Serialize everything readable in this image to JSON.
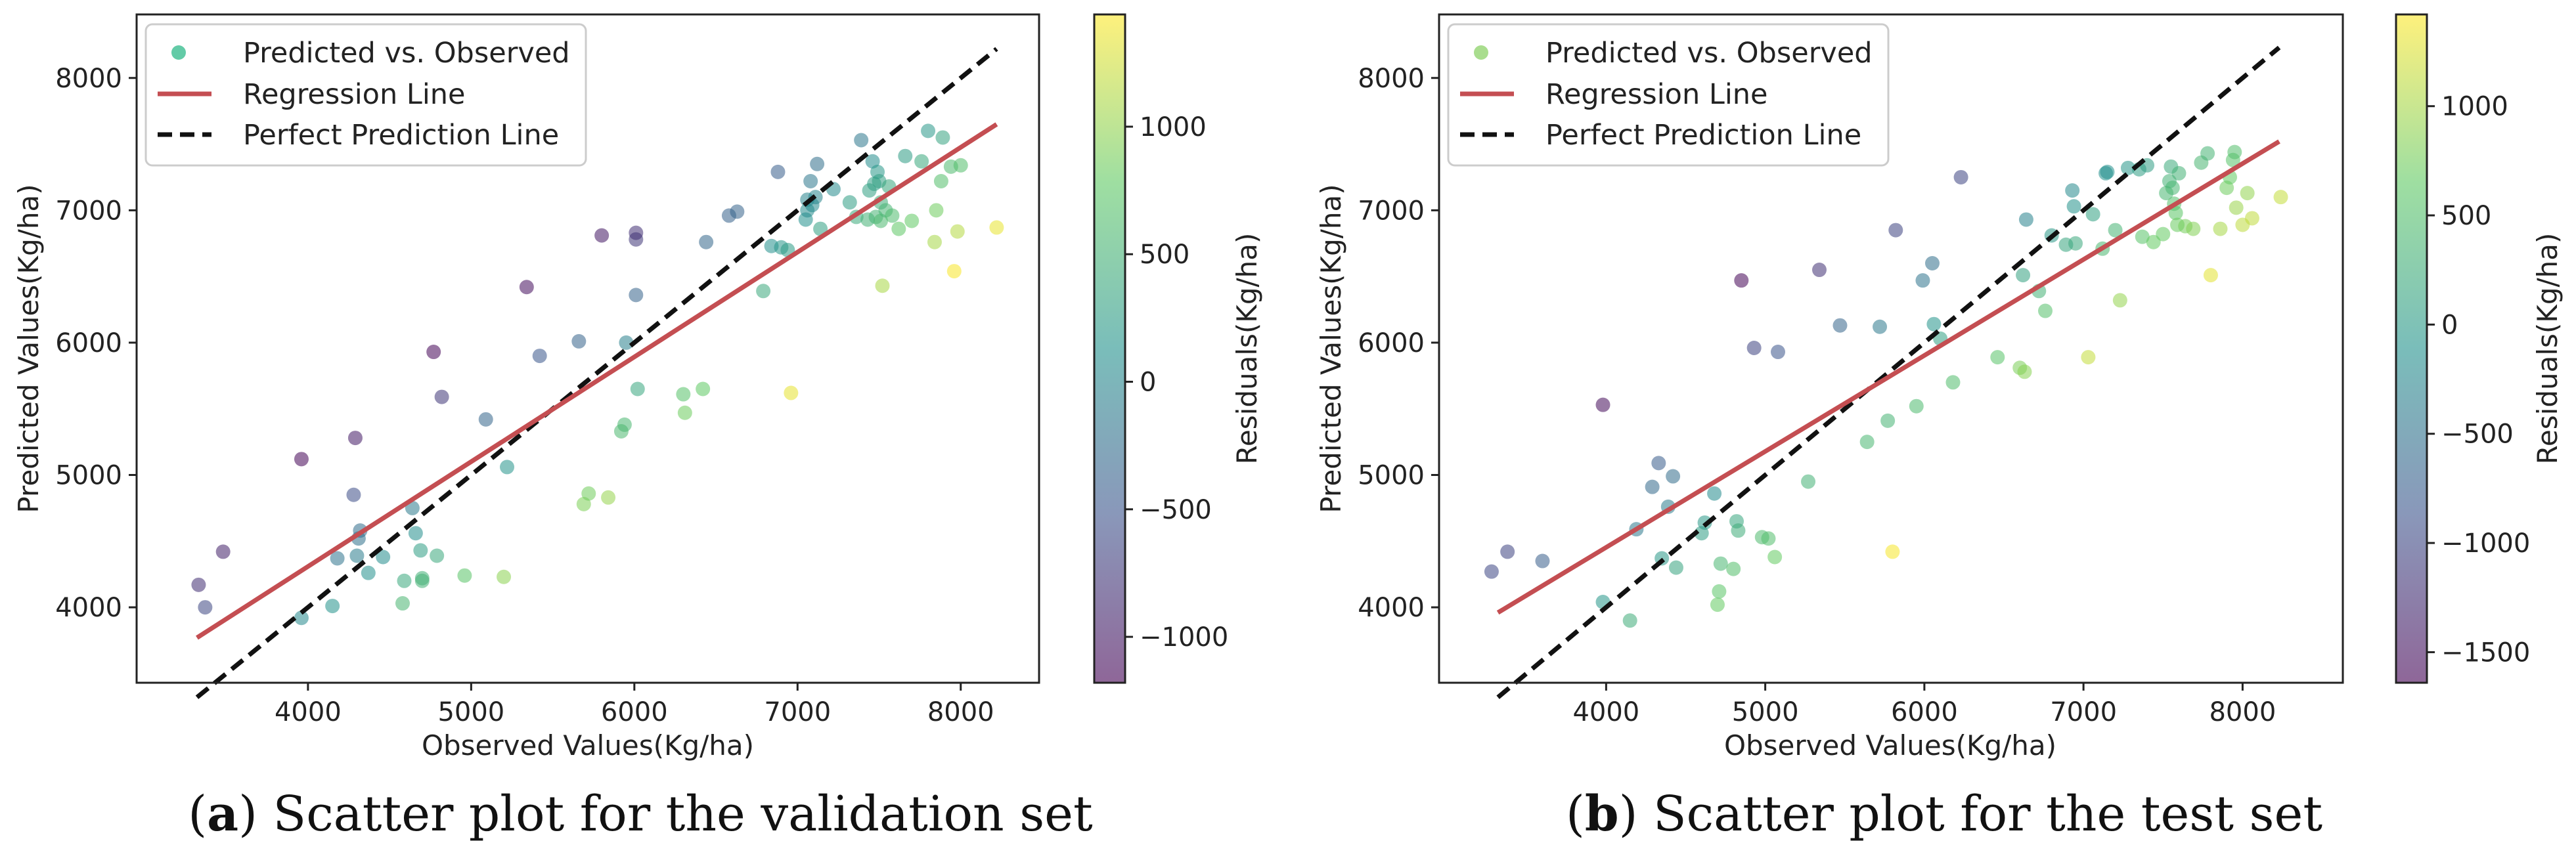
{
  "colors": {
    "regression": "#c44e52",
    "perfect": "#111111",
    "legend_marker_a": "#2fb989",
    "legend_marker_b": "#9ad77a",
    "colormap": [
      "#440154",
      "#3b528b",
      "#21918c",
      "#5ec962",
      "#fde725"
    ]
  },
  "chart_data": [
    {
      "type": "scatter",
      "caption": {
        "letter": "a",
        "open": "(",
        "close": ")",
        "text": " Scatter plot for the validation set"
      },
      "xlabel": "Observed Values(Kg/ha)",
      "ylabel": "Predicted Values(Kg/ha)",
      "colorbar_label": "Residuals(Kg/ha)",
      "xlim": [
        2950,
        8480
      ],
      "ylim": [
        3430,
        8480
      ],
      "xticks": [
        4000,
        5000,
        6000,
        7000,
        8000
      ],
      "yticks": [
        4000,
        5000,
        6000,
        7000,
        8000
      ],
      "cbar_range": [
        -1180,
        1440
      ],
      "cbar_ticks": [
        -1000,
        -500,
        0,
        500,
        1000
      ],
      "grid": false,
      "legend": {
        "position": "top-left",
        "entries": [
          "Predicted vs. Observed",
          "Regression Line",
          "Perfect Prediction Line"
        ]
      },
      "regression_line": {
        "x": [
          3320,
          8220
        ],
        "y": [
          3770,
          7650
        ]
      },
      "perfect_line": {
        "x": [
          3320,
          8220
        ],
        "y": [
          3320,
          8220
        ]
      },
      "series": [
        {
          "name": "Predicted vs. Observed",
          "points": [
            [
              3330,
              4170
            ],
            [
              3370,
              4000
            ],
            [
              3480,
              4420
            ],
            [
              3960,
              3920
            ],
            [
              3960,
              5120
            ],
            [
              4150,
              4010
            ],
            [
              4180,
              4370
            ],
            [
              4280,
              4850
            ],
            [
              4290,
              5280
            ],
            [
              4300,
              4390
            ],
            [
              4310,
              4520
            ],
            [
              4320,
              4580
            ],
            [
              4370,
              4260
            ],
            [
              4460,
              4380
            ],
            [
              4580,
              4030
            ],
            [
              4590,
              4200
            ],
            [
              4640,
              4750
            ],
            [
              4660,
              4560
            ],
            [
              4690,
              4430
            ],
            [
              4700,
              4220
            ],
            [
              4700,
              4200
            ],
            [
              4770,
              5930
            ],
            [
              4790,
              4390
            ],
            [
              4820,
              5590
            ],
            [
              4960,
              4240
            ],
            [
              5090,
              5420
            ],
            [
              5200,
              4230
            ],
            [
              5220,
              5060
            ],
            [
              5340,
              6420
            ],
            [
              5420,
              5900
            ],
            [
              5660,
              6010
            ],
            [
              5690,
              4780
            ],
            [
              5720,
              4860
            ],
            [
              5800,
              6810
            ],
            [
              5840,
              4830
            ],
            [
              5920,
              5330
            ],
            [
              5940,
              5380
            ],
            [
              5950,
              6000
            ],
            [
              6010,
              6780
            ],
            [
              6010,
              6360
            ],
            [
              6010,
              6830
            ],
            [
              6020,
              5650
            ],
            [
              6300,
              5610
            ],
            [
              6310,
              5470
            ],
            [
              6420,
              5650
            ],
            [
              6440,
              6760
            ],
            [
              6580,
              6960
            ],
            [
              6630,
              6990
            ],
            [
              6790,
              6390
            ],
            [
              6840,
              6730
            ],
            [
              6880,
              7290
            ],
            [
              6900,
              6720
            ],
            [
              6940,
              6700
            ],
            [
              6960,
              5620
            ],
            [
              7050,
              6930
            ],
            [
              7060,
              7080
            ],
            [
              7080,
              7220
            ],
            [
              7090,
              7040
            ],
            [
              7110,
              7100
            ],
            [
              7120,
              7350
            ],
            [
              7140,
              6860
            ],
            [
              7220,
              7160
            ],
            [
              7320,
              7060
            ],
            [
              7360,
              6950
            ],
            [
              7390,
              7530
            ],
            [
              7430,
              6930
            ],
            [
              7460,
              7370
            ],
            [
              7470,
              7200
            ],
            [
              7480,
              6950
            ],
            [
              7490,
              7290
            ],
            [
              7500,
              7220
            ],
            [
              7510,
              6920
            ],
            [
              7510,
              7060
            ],
            [
              7520,
              6430
            ],
            [
              7540,
              7000
            ],
            [
              7560,
              7180
            ],
            [
              7580,
              6960
            ],
            [
              7620,
              6860
            ],
            [
              7660,
              7410
            ],
            [
              7700,
              6920
            ],
            [
              7760,
              7370
            ],
            [
              7800,
              7600
            ],
            [
              7840,
              6760
            ],
            [
              7850,
              7000
            ],
            [
              7880,
              7220
            ],
            [
              7890,
              7550
            ],
            [
              7940,
              7330
            ],
            [
              7960,
              6540
            ],
            [
              7980,
              6840
            ],
            [
              8000,
              7340
            ],
            [
              8220,
              6870
            ],
            [
              7060,
              7000
            ],
            [
              7440,
              7150
            ]
          ]
        }
      ]
    },
    {
      "type": "scatter",
      "caption": {
        "letter": "b",
        "open": "(",
        "close": ")",
        "text": " Scatter plot for the test set"
      },
      "xlabel": "Observed Values(Kg/ha)",
      "ylabel": "Predicted Values(Kg/ha)",
      "colorbar_label": "Residuals(Kg/ha)",
      "xlim": [
        2950,
        8630
      ],
      "ylim": [
        3430,
        8480
      ],
      "xticks": [
        4000,
        5000,
        6000,
        7000,
        8000
      ],
      "yticks": [
        4000,
        5000,
        6000,
        7000,
        8000
      ],
      "cbar_range": [
        -1640,
        1420
      ],
      "cbar_ticks": [
        -1500,
        -1000,
        -500,
        0,
        500,
        1000
      ],
      "grid": false,
      "legend": {
        "position": "top-left",
        "entries": [
          "Predicted vs. Observed",
          "Regression Line",
          "Perfect Prediction Line"
        ]
      },
      "regression_line": {
        "x": [
          3320,
          8230
        ],
        "y": [
          3960,
          7520
        ]
      },
      "perfect_line": {
        "x": [
          3320,
          8230
        ],
        "y": [
          3320,
          8230
        ]
      },
      "series": [
        {
          "name": "Predicted vs. Observed",
          "points": [
            [
              3280,
              4270
            ],
            [
              3380,
              4420
            ],
            [
              3600,
              4350
            ],
            [
              3980,
              5530
            ],
            [
              3980,
              4040
            ],
            [
              4150,
              3900
            ],
            [
              4190,
              4590
            ],
            [
              4290,
              4910
            ],
            [
              4330,
              5090
            ],
            [
              4350,
              4370
            ],
            [
              4390,
              4760
            ],
            [
              4420,
              4990
            ],
            [
              4440,
              4300
            ],
            [
              4600,
              4560
            ],
            [
              4620,
              4640
            ],
            [
              4680,
              4860
            ],
            [
              4700,
              4020
            ],
            [
              4710,
              4120
            ],
            [
              4720,
              4330
            ],
            [
              4800,
              4290
            ],
            [
              4820,
              4650
            ],
            [
              4830,
              4580
            ],
            [
              4850,
              6470
            ],
            [
              4930,
              5960
            ],
            [
              4980,
              4530
            ],
            [
              5020,
              4520
            ],
            [
              5060,
              4380
            ],
            [
              5080,
              5930
            ],
            [
              5270,
              4950
            ],
            [
              5340,
              6550
            ],
            [
              5470,
              6130
            ],
            [
              5640,
              5250
            ],
            [
              5720,
              6120
            ],
            [
              5770,
              5410
            ],
            [
              5800,
              4420
            ],
            [
              5820,
              6850
            ],
            [
              5950,
              5520
            ],
            [
              5990,
              6470
            ],
            [
              6050,
              6600
            ],
            [
              6060,
              6140
            ],
            [
              6100,
              6030
            ],
            [
              6180,
              5700
            ],
            [
              6230,
              7250
            ],
            [
              6460,
              5890
            ],
            [
              6600,
              5810
            ],
            [
              6620,
              6510
            ],
            [
              6630,
              5780
            ],
            [
              6640,
              6930
            ],
            [
              6720,
              6390
            ],
            [
              6760,
              6240
            ],
            [
              6800,
              6810
            ],
            [
              6890,
              6740
            ],
            [
              6930,
              7150
            ],
            [
              6940,
              7030
            ],
            [
              6950,
              6750
            ],
            [
              7030,
              5890
            ],
            [
              7060,
              6970
            ],
            [
              7120,
              6710
            ],
            [
              7140,
              7280
            ],
            [
              7150,
              7290
            ],
            [
              7200,
              6850
            ],
            [
              7230,
              6320
            ],
            [
              7280,
              7320
            ],
            [
              7350,
              7310
            ],
            [
              7370,
              6800
            ],
            [
              7400,
              7340
            ],
            [
              7440,
              6760
            ],
            [
              7500,
              6820
            ],
            [
              7520,
              7130
            ],
            [
              7540,
              7220
            ],
            [
              7550,
              7330
            ],
            [
              7560,
              7170
            ],
            [
              7580,
              6980
            ],
            [
              7590,
              6890
            ],
            [
              7600,
              7280
            ],
            [
              7640,
              6880
            ],
            [
              7690,
              6860
            ],
            [
              7740,
              7360
            ],
            [
              7780,
              7430
            ],
            [
              7800,
              6510
            ],
            [
              7860,
              6860
            ],
            [
              7900,
              7170
            ],
            [
              7920,
              7250
            ],
            [
              7940,
              7380
            ],
            [
              7950,
              7440
            ],
            [
              7960,
              7020
            ],
            [
              8000,
              6890
            ],
            [
              8030,
              7130
            ],
            [
              8060,
              6940
            ],
            [
              8240,
              7100
            ],
            [
              7570,
              7050
            ]
          ]
        }
      ]
    }
  ]
}
